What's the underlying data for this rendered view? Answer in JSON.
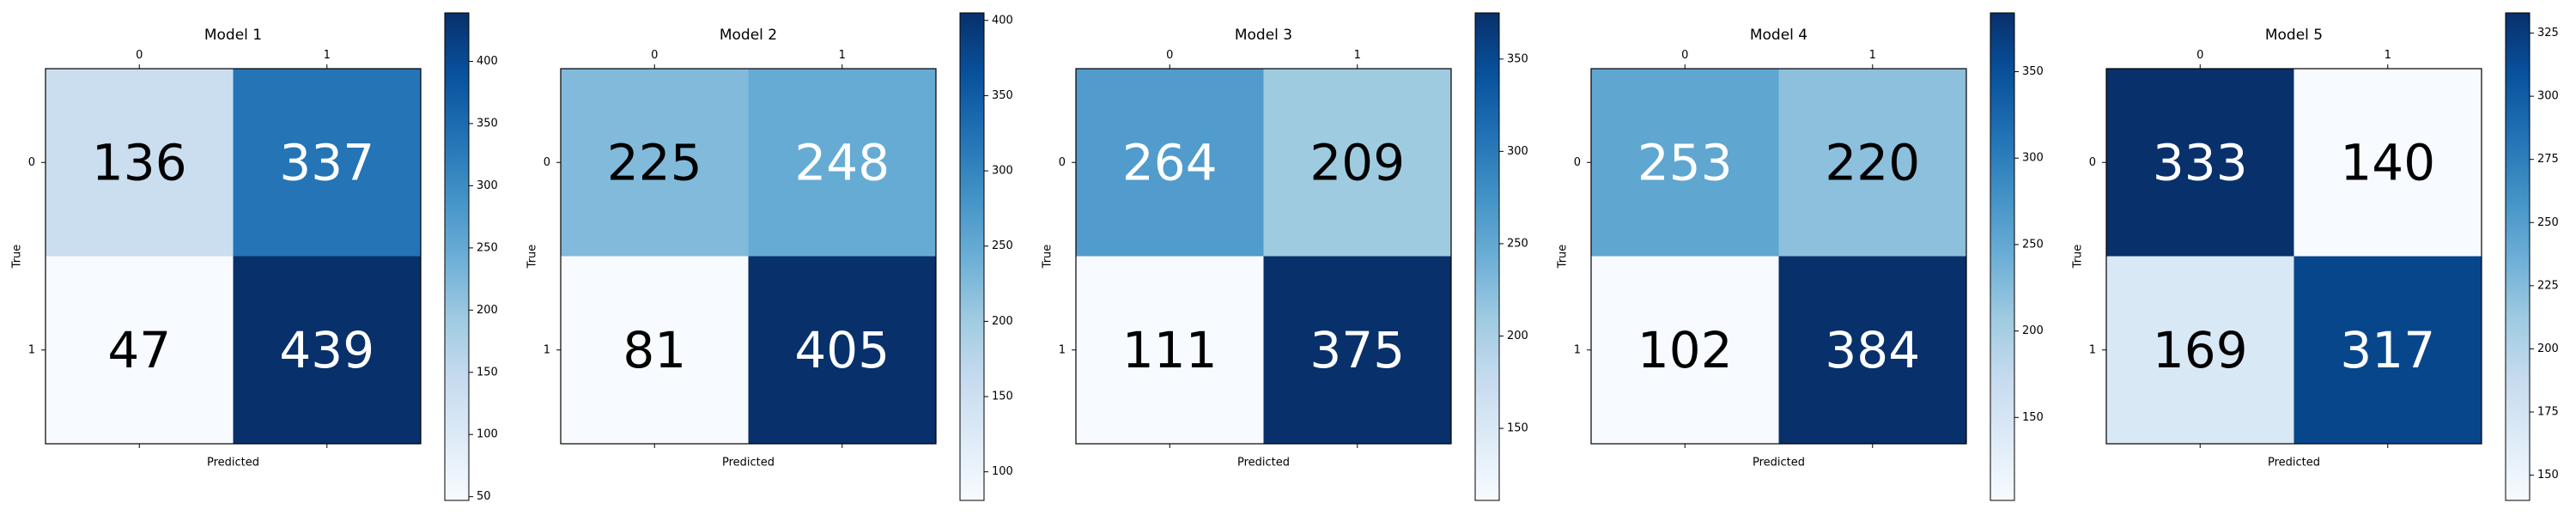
{
  "chart_data": [
    {
      "type": "heatmap",
      "title": "Model 1",
      "xlabel": "Predicted",
      "ylabel": "True",
      "x_tick_labels": [
        "0",
        "1"
      ],
      "y_tick_labels": [
        "0",
        "1"
      ],
      "matrix": [
        [
          136,
          337
        ],
        [
          47,
          439
        ]
      ],
      "colormap": "Blues",
      "colorbar_range": [
        47,
        439
      ],
      "colorbar_ticks": [
        50,
        100,
        150,
        200,
        250,
        300,
        350,
        400
      ]
    },
    {
      "type": "heatmap",
      "title": "Model 2",
      "xlabel": "Predicted",
      "ylabel": "True",
      "x_tick_labels": [
        "0",
        "1"
      ],
      "y_tick_labels": [
        "0",
        "1"
      ],
      "matrix": [
        [
          225,
          248
        ],
        [
          81,
          405
        ]
      ],
      "colormap": "Blues",
      "colorbar_range": [
        81,
        405
      ],
      "colorbar_ticks": [
        100,
        150,
        200,
        250,
        300,
        350,
        400
      ]
    },
    {
      "type": "heatmap",
      "title": "Model 3",
      "xlabel": "Predicted",
      "ylabel": "True",
      "x_tick_labels": [
        "0",
        "1"
      ],
      "y_tick_labels": [
        "0",
        "1"
      ],
      "matrix": [
        [
          264,
          209
        ],
        [
          111,
          375
        ]
      ],
      "colormap": "Blues",
      "colorbar_range": [
        111,
        375
      ],
      "colorbar_ticks": [
        150,
        200,
        250,
        300,
        350
      ]
    },
    {
      "type": "heatmap",
      "title": "Model 4",
      "xlabel": "Predicted",
      "ylabel": "True",
      "x_tick_labels": [
        "0",
        "1"
      ],
      "y_tick_labels": [
        "0",
        "1"
      ],
      "matrix": [
        [
          253,
          220
        ],
        [
          102,
          384
        ]
      ],
      "colormap": "Blues",
      "colorbar_range": [
        102,
        384
      ],
      "colorbar_ticks": [
        150,
        200,
        250,
        300,
        350
      ]
    },
    {
      "type": "heatmap",
      "title": "Model 5",
      "xlabel": "Predicted",
      "ylabel": "True",
      "x_tick_labels": [
        "0",
        "1"
      ],
      "y_tick_labels": [
        "0",
        "1"
      ],
      "matrix": [
        [
          333,
          140
        ],
        [
          169,
          317
        ]
      ],
      "colormap": "Blues",
      "colorbar_range": [
        140,
        333
      ],
      "colorbar_ticks": [
        150,
        175,
        200,
        225,
        250,
        275,
        300,
        325
      ]
    }
  ]
}
